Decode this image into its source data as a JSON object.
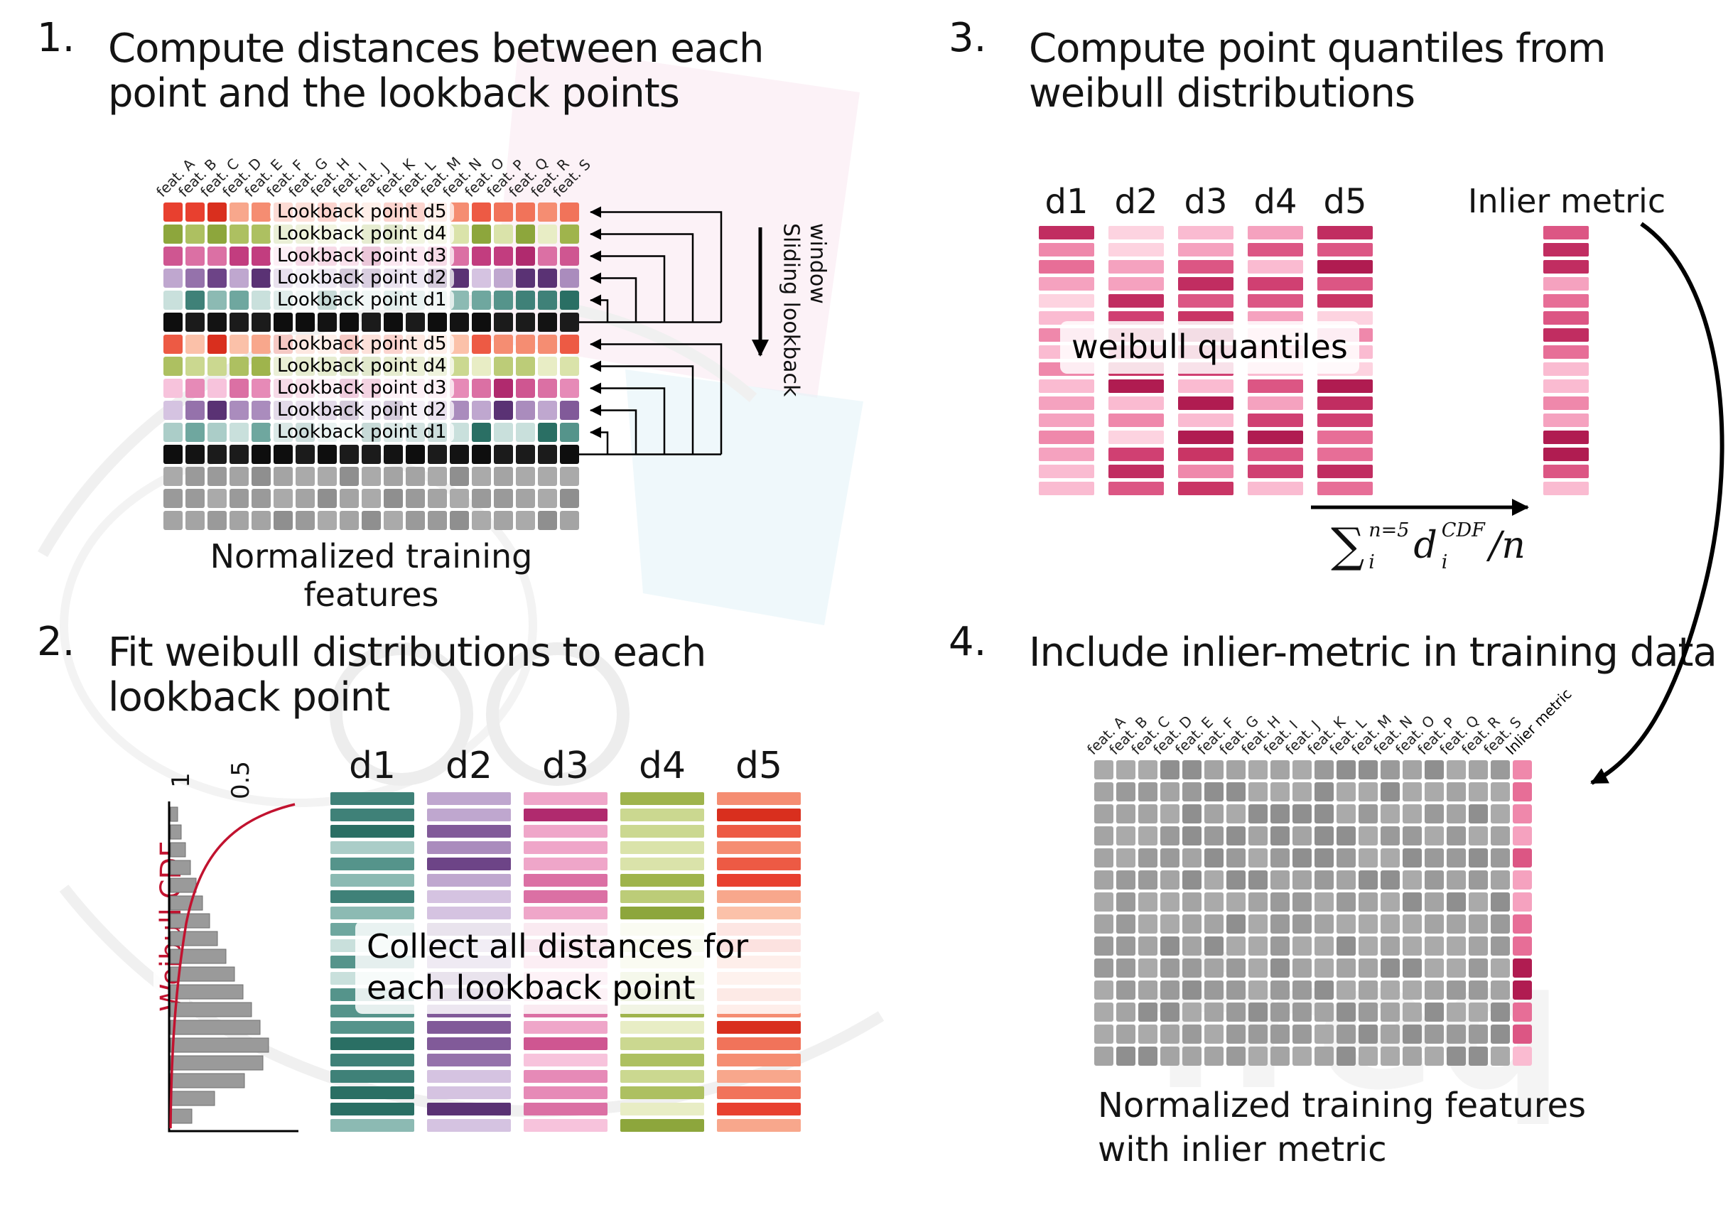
{
  "watermark": {
    "text": "freq"
  },
  "palettes": {
    "d1": [
      "#3f8178",
      "#55948b",
      "#6fa79f",
      "#8cbab3",
      "#abcdc8",
      "#c9e0dc",
      "#2a6f64"
    ],
    "d2": [
      "#6d4487",
      "#815a99",
      "#9572ab",
      "#aa8cbd",
      "#bfa7cf",
      "#d5c3e1",
      "#5a3274"
    ],
    "d3": [
      "#c23d7f",
      "#cf5691",
      "#db70a4",
      "#e68ab7",
      "#efa6c9",
      "#f7c3dc",
      "#b02a6e"
    ],
    "d4": [
      "#9fb44c",
      "#adc061",
      "#bccc78",
      "#cbd890",
      "#dae3aa",
      "#e8edc5",
      "#8da63c"
    ],
    "d5": [
      "#e8402f",
      "#ed5a44",
      "#f1735a",
      "#f58d72",
      "#f8a78c",
      "#fbc1a9",
      "#d92f1e"
    ],
    "current": [
      "#131313",
      "#1b1b1b",
      "#0e0e0e"
    ],
    "future": [
      "#9a9a9a",
      "#a4a4a4",
      "#8f8f8f",
      "#aaaaaa"
    ],
    "quantile": [
      "#b01c51",
      "#c12d61",
      "#d04072",
      "#dc5684",
      "#e76e97",
      "#ef88ab",
      "#f5a2bf",
      "#fabbd1",
      "#fdd3e0",
      "#c93565"
    ],
    "inlier": [
      "#c12d61",
      "#d04072",
      "#dc5684",
      "#e76e97",
      "#ef88ab",
      "#f5a2bf",
      "#fabbd1",
      "#b01c51"
    ]
  },
  "panel1": {
    "number": "1.",
    "title": "Compute distances between each point and the lookback points",
    "caption": "Normalized training features",
    "sliding_label": "Sliding lookback window",
    "feature_headers": [
      "feat. A",
      "feat. B",
      "feat. C",
      "feat. D",
      "feat. E",
      "feat. F",
      "feat. G",
      "feat. H",
      "feat. I",
      "feat. J",
      "feat. K",
      "feat. L",
      "feat. M",
      "feat. N",
      "feat. O",
      "feat. P",
      "feat. Q",
      "feat. R",
      "feat. S"
    ],
    "rows": [
      {
        "type": "d5",
        "label": "Lookback point d5"
      },
      {
        "type": "d4",
        "label": "Lookback point d4"
      },
      {
        "type": "d3",
        "label": "Lookback point d3"
      },
      {
        "type": "d2",
        "label": "Lookback point d2"
      },
      {
        "type": "d1",
        "label": "Lookback point d1"
      },
      {
        "type": "current",
        "label": ""
      },
      {
        "type": "d5",
        "label": "Lookback point d5"
      },
      {
        "type": "d4",
        "label": "Lookback point d4"
      },
      {
        "type": "d3",
        "label": "Lookback point d3"
      },
      {
        "type": "d2",
        "label": "Lookback point d2"
      },
      {
        "type": "d1",
        "label": "Lookback point d1"
      },
      {
        "type": "current",
        "label": ""
      },
      {
        "type": "future",
        "label": ""
      },
      {
        "type": "future",
        "label": ""
      },
      {
        "type": "future",
        "label": ""
      }
    ]
  },
  "panel2": {
    "number": "2.",
    "title": "Fit weibull distributions to each lookback point",
    "chart": {
      "ylabel": "Weibull CDF",
      "tick_1": "1",
      "tick_05": "0.5",
      "curve_color": "#c1122f"
    },
    "columns": [
      "d1",
      "d2",
      "d3",
      "d4",
      "d5"
    ],
    "note": "Collect all distances for each lookback point"
  },
  "panel3": {
    "number": "3.",
    "title": "Compute point quantiles from weibull distributions",
    "columns": [
      "d1",
      "d2",
      "d3",
      "d4",
      "d5"
    ],
    "note": "weibull quantiles",
    "inlier_label": "Inlier metric",
    "formula": {
      "sigma": "∑",
      "sum_sup": "n=5",
      "sum_sub": "i",
      "var": "d",
      "var_sup": "CDF",
      "var_sub": "i",
      "tail": "/n"
    }
  },
  "panel4": {
    "number": "4.",
    "title": "Include inlier-metric in training data",
    "feature_headers": [
      "feat. A",
      "feat. B",
      "feat. C",
      "feat. D",
      "feat. E",
      "feat. F",
      "feat. G",
      "feat. H",
      "feat. I",
      "feat. J",
      "feat. K",
      "feat. L",
      "feat. M",
      "feat. N",
      "feat. O",
      "feat. P",
      "feat. Q",
      "feat. R",
      "feat. S"
    ],
    "inlier_header": "Inlier metric",
    "caption_line1": "Normalized training features",
    "caption_line2": "with inlier metric"
  }
}
